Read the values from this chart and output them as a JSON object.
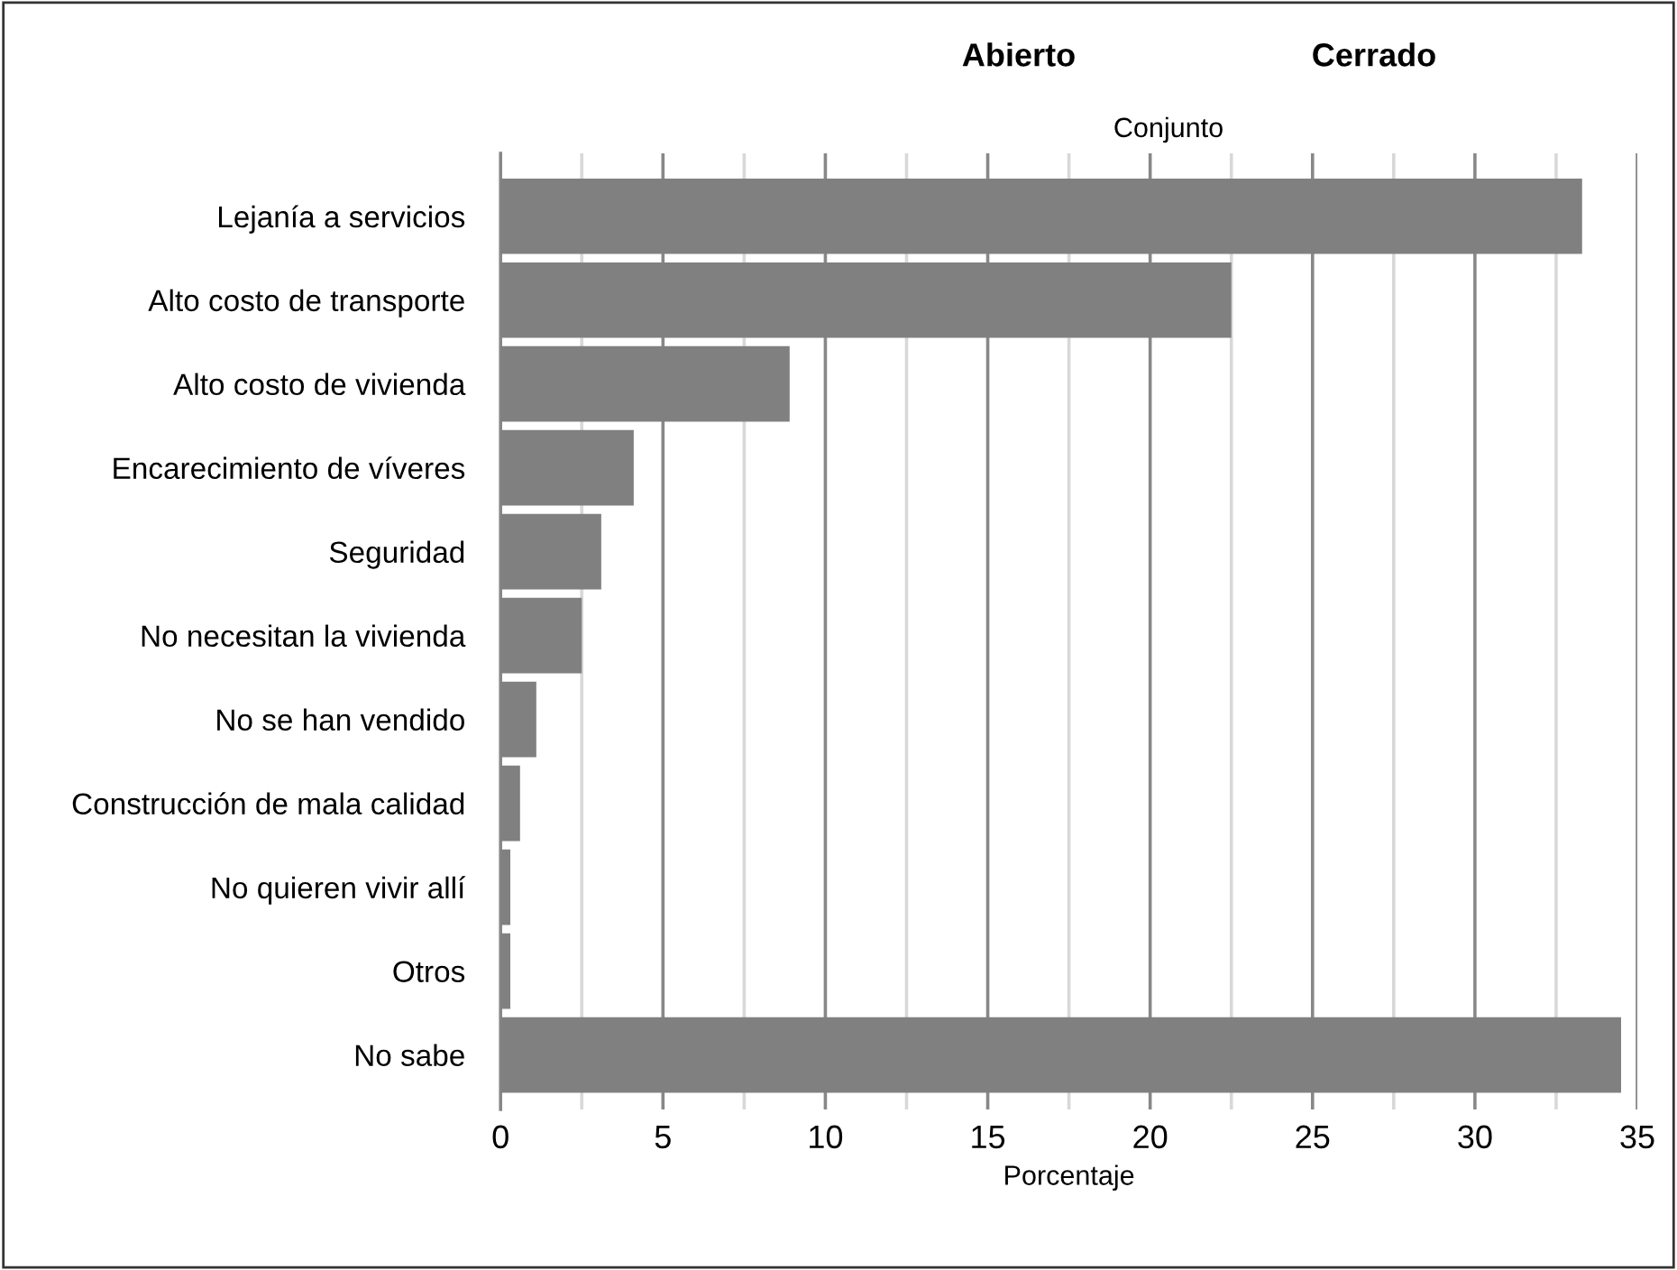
{
  "chart_data": {
    "type": "bar",
    "orientation": "horizontal",
    "xlabel": "Porcentaje",
    "categories": [
      "Lejanía a servicios",
      "Alto costo de transporte",
      "Alto costo de vivienda",
      "Encarecimiento de víveres",
      "Seguridad",
      "No necesitan la vivienda",
      "No se han vendido",
      "Construcción de mala calidad",
      "No quieren vivir allí",
      "Otros",
      "No sabe"
    ],
    "values": [
      33.3,
      22.5,
      8.9,
      4.1,
      3.1,
      2.5,
      1.1,
      0.6,
      0.3,
      0.3,
      34.5
    ],
    "color": "#808080",
    "xlim": [
      0,
      35
    ],
    "xticks": [
      0,
      {
        "value": 2.5,
        "label": null
      },
      5,
      {
        "value": 7.5,
        "label": null
      },
      10,
      {
        "value": 12.5,
        "label": null
      },
      15,
      {
        "value": 17.5,
        "label": null
      },
      20,
      {
        "value": 22.5,
        "label": null
      },
      25,
      {
        "value": 27.5,
        "label": null
      },
      30,
      {
        "value": 32.5,
        "label": null
      },
      35
    ],
    "grid": "x",
    "annotations": [
      "Abierto",
      "Conjunto",
      "Cerrado"
    ]
  }
}
